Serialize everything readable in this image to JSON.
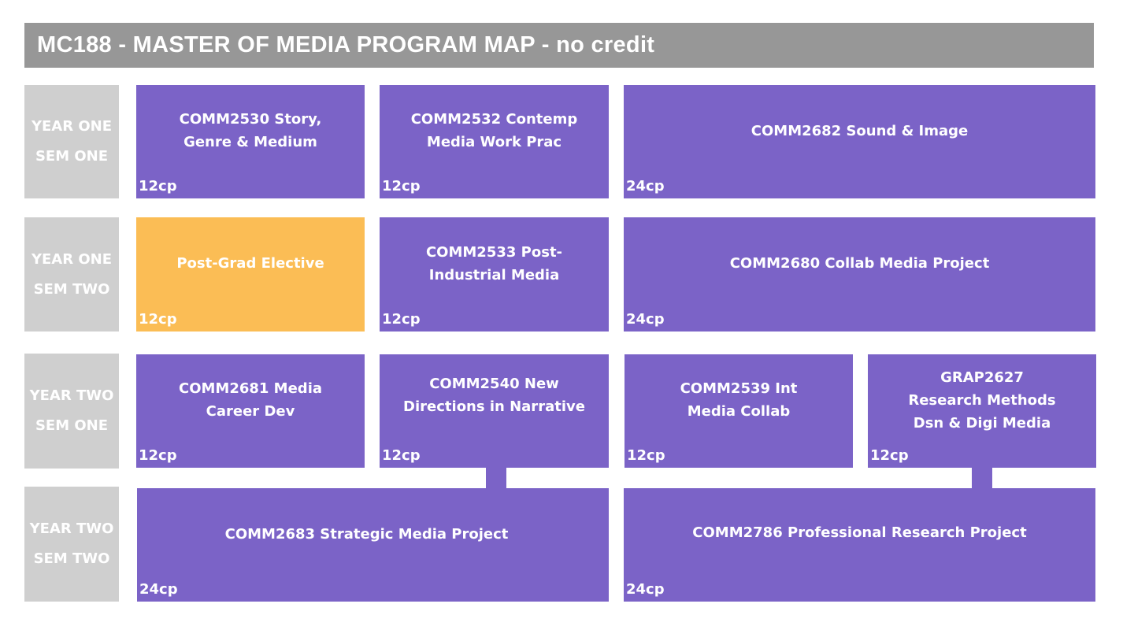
{
  "title": "MC188 - MASTER OF MEDIA PROGRAM MAP - no credit",
  "rows": [
    {
      "line1": "YEAR ONE",
      "line2": "SEM ONE"
    },
    {
      "line1": "YEAR ONE",
      "line2": "SEM TWO"
    },
    {
      "line1": "YEAR TWO",
      "line2": "SEM ONE"
    },
    {
      "line1": "YEAR TWO",
      "line2": "SEM TWO"
    }
  ],
  "courses": [
    {
      "name": "COMM2530 Story,\nGenre & Medium",
      "cp": "12cp"
    },
    {
      "name": "COMM2532 Contemp\nMedia Work Prac",
      "cp": "12cp"
    },
    {
      "name": "COMM2682 Sound & Image",
      "cp": "24cp"
    },
    {
      "name": "Post-Grad Elective",
      "cp": "12cp"
    },
    {
      "name": "COMM2533 Post-\nIndustrial Media",
      "cp": "12cp"
    },
    {
      "name": "COMM2680 Collab Media Project",
      "cp": "24cp"
    },
    {
      "name": "COMM2681 Media\nCareer Dev",
      "cp": "12cp"
    },
    {
      "name": "COMM2540 New\nDirections in Narrative",
      "cp": "12cp"
    },
    {
      "name": "COMM2539 Int\nMedia Collab",
      "cp": "12cp"
    },
    {
      "name": "GRAP2627\nResearch Methods\nDsn & Digi Media",
      "cp": "12cp"
    },
    {
      "name": "COMM2683 Strategic Media Project",
      "cp": "24cp"
    },
    {
      "name": "COMM2786 Professional Research Project",
      "cp": "24cp"
    }
  ],
  "colors": {
    "core": "#7b63c7",
    "elective": "#fbbd55",
    "label": "#cfcfcf",
    "title_bar": "#979797"
  }
}
